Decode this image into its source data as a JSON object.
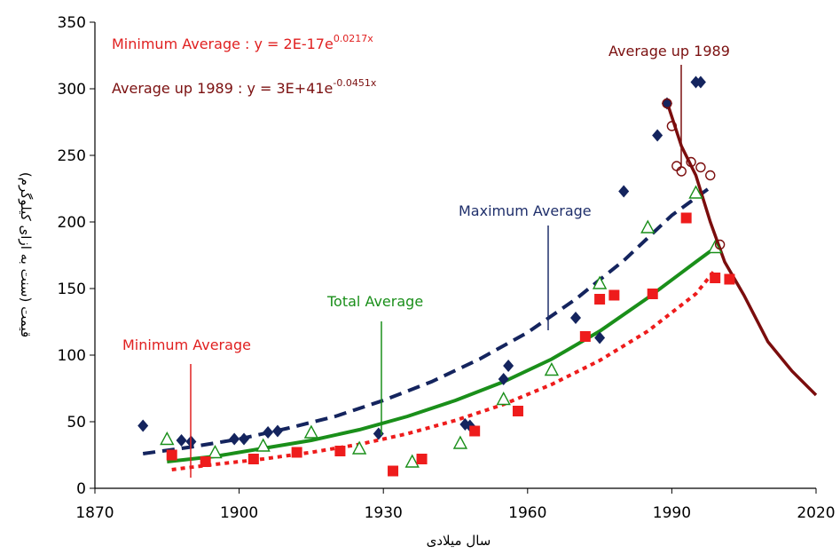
{
  "chart_data": {
    "type": "scatter",
    "xlabel": "سال میلادی",
    "ylabel": "قیمت (سنت به ازای کیلوگرم)",
    "xlim": [
      1870,
      2020
    ],
    "ylim": [
      0,
      350
    ],
    "x_ticks": [
      1870,
      1900,
      1930,
      1960,
      1990,
      2020
    ],
    "y_ticks": [
      0,
      50,
      100,
      150,
      200,
      250,
      300,
      350
    ],
    "grid": false,
    "legend": "none",
    "equations": {
      "minimum": {
        "prefix": "Minimum Average :  y = 2E-17e",
        "exp": "0.0217x"
      },
      "up1989": {
        "prefix": "Average up 1989 : y = 3E+41e",
        "exp": "-0.0451x"
      }
    },
    "annotations": [
      {
        "text": "Maximum Average",
        "color": "#1f2f6b"
      },
      {
        "text": "Total Average",
        "color": "#1a8f1a"
      },
      {
        "text": "Minimum Average",
        "color": "#e02020"
      },
      {
        "text": "Average up 1989",
        "color": "#7b1010"
      }
    ],
    "colors": {
      "maximum": "#14245e",
      "total": "#1a8f1a",
      "minimum": "#ee1c1c",
      "up1989": "#7b0d0d"
    },
    "series": [
      {
        "marker": "diamond",
        "color": "#14245e",
        "points": [
          [
            1880,
            47
          ],
          [
            1888,
            36
          ],
          [
            1890,
            35
          ],
          [
            1899,
            37
          ],
          [
            1901,
            37
          ],
          [
            1906,
            42
          ],
          [
            1908,
            43
          ],
          [
            1929,
            41
          ],
          [
            1947,
            48
          ],
          [
            1948,
            47
          ],
          [
            1955,
            82
          ],
          [
            1956,
            92
          ],
          [
            1970,
            128
          ],
          [
            1975,
            113
          ],
          [
            1980,
            223
          ],
          [
            1987,
            265
          ],
          [
            1989,
            289
          ],
          [
            1995,
            305
          ],
          [
            1996,
            305
          ]
        ]
      },
      {
        "marker": "open-triangle",
        "color": "#1a8f1a",
        "points": [
          [
            1885,
            37
          ],
          [
            1895,
            27
          ],
          [
            1905,
            32
          ],
          [
            1915,
            42
          ],
          [
            1925,
            30
          ],
          [
            1936,
            20
          ],
          [
            1946,
            34
          ],
          [
            1955,
            67
          ],
          [
            1965,
            89
          ],
          [
            1975,
            154
          ],
          [
            1985,
            196
          ],
          [
            1995,
            222
          ],
          [
            1999,
            181
          ]
        ]
      },
      {
        "marker": "square",
        "color": "#ee1c1c",
        "points": [
          [
            1886,
            25
          ],
          [
            1893,
            20
          ],
          [
            1903,
            22
          ],
          [
            1912,
            27
          ],
          [
            1921,
            28
          ],
          [
            1932,
            13
          ],
          [
            1938,
            22
          ],
          [
            1949,
            43
          ],
          [
            1958,
            58
          ],
          [
            1972,
            114
          ],
          [
            1975,
            142
          ],
          [
            1978,
            145
          ],
          [
            1986,
            146
          ],
          [
            1993,
            203
          ],
          [
            1999,
            158
          ],
          [
            2002,
            157
          ]
        ]
      },
      {
        "marker": "open-circle",
        "color": "#7b0d0d",
        "points": [
          [
            1989,
            289
          ],
          [
            1990,
            272
          ],
          [
            1991,
            242
          ],
          [
            1992,
            238
          ],
          [
            1994,
            245
          ],
          [
            1996,
            241
          ],
          [
            1998,
            235
          ],
          [
            2000,
            183
          ]
        ]
      }
    ],
    "trendlines": [
      {
        "name": "Maximum Average",
        "style": "dashed",
        "color": "#14245e",
        "x_range": [
          1880,
          1998
        ],
        "points": [
          [
            1880,
            26
          ],
          [
            1890,
            31
          ],
          [
            1900,
            37
          ],
          [
            1910,
            45
          ],
          [
            1920,
            54
          ],
          [
            1930,
            66
          ],
          [
            1940,
            80
          ],
          [
            1950,
            97
          ],
          [
            1960,
            117
          ],
          [
            1970,
            142
          ],
          [
            1980,
            171
          ],
          [
            1990,
            205
          ],
          [
            1998,
            226
          ]
        ]
      },
      {
        "name": "Total Average",
        "style": "solid",
        "color": "#1a8f1a",
        "x_range": [
          1885,
          1998
        ],
        "points": [
          [
            1885,
            20
          ],
          [
            1895,
            24
          ],
          [
            1905,
            30
          ],
          [
            1915,
            36
          ],
          [
            1925,
            44
          ],
          [
            1935,
            54
          ],
          [
            1945,
            66
          ],
          [
            1955,
            80
          ],
          [
            1965,
            97
          ],
          [
            1975,
            118
          ],
          [
            1985,
            143
          ],
          [
            1995,
            170
          ],
          [
            1998,
            178
          ]
        ]
      },
      {
        "name": "Minimum Average",
        "style": "dotted",
        "color": "#ee1c1c",
        "x_range": [
          1886,
          1999
        ],
        "points": [
          [
            1886,
            14
          ],
          [
            1895,
            18
          ],
          [
            1905,
            22
          ],
          [
            1915,
            27
          ],
          [
            1925,
            33
          ],
          [
            1935,
            41
          ],
          [
            1945,
            51
          ],
          [
            1955,
            63
          ],
          [
            1965,
            78
          ],
          [
            1975,
            96
          ],
          [
            1985,
            118
          ],
          [
            1995,
            146
          ],
          [
            1999,
            164
          ]
        ]
      },
      {
        "name": "Average up 1989",
        "style": "solid",
        "color": "#7b0d0d",
        "x_range": [
          1989,
          2020
        ],
        "points": [
          [
            1989,
            290
          ],
          [
            1992,
            257
          ],
          [
            1995,
            235
          ],
          [
            1998,
            200
          ],
          [
            2001,
            170
          ],
          [
            2005,
            145
          ],
          [
            2010,
            110
          ],
          [
            2015,
            88
          ],
          [
            2020,
            70
          ]
        ]
      }
    ]
  }
}
